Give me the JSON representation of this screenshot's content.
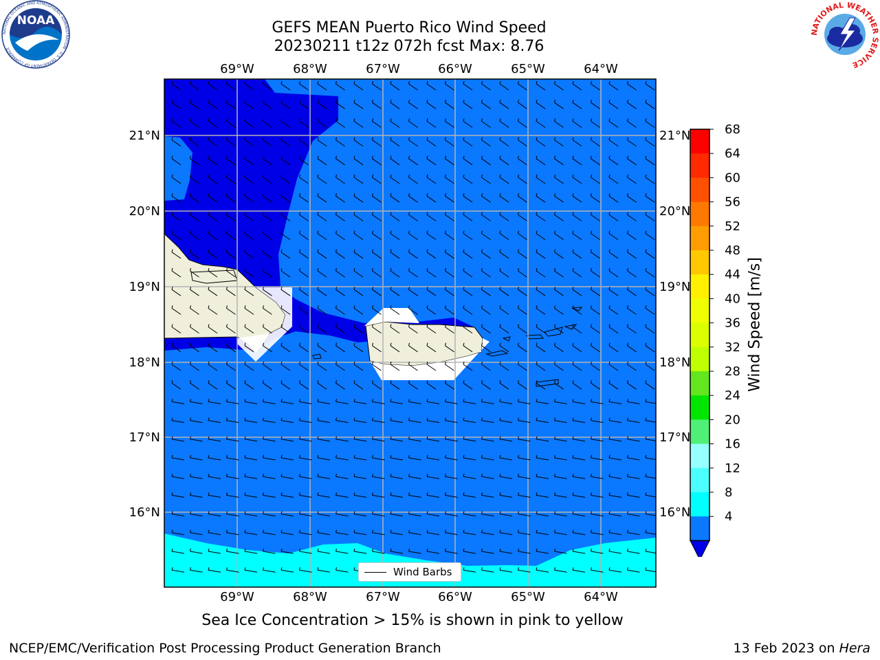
{
  "header": {
    "title_line1": "GEFS MEAN Puerto Rico Wind Speed",
    "title_line2": "20230211 t12z 072h fcst   Max: 8.76"
  },
  "logos": {
    "left_name": "NOAA",
    "left_ring_text": "NATIONAL OCEANIC AND ATMOSPHERIC ADMINISTRATION · U.S. DEPARTMENT OF COMMERCE",
    "right_ring_text": "NATIONAL WEATHER SERVICE"
  },
  "map": {
    "lon_labels": [
      "69°W",
      "68°W",
      "67°W",
      "66°W",
      "65°W",
      "64°W"
    ],
    "lat_labels": [
      "21°N",
      "20°N",
      "19°N",
      "18°N",
      "17°N",
      "16°N"
    ],
    "legend_label": "Wind Barbs",
    "colors": {
      "dark_blue": "#0000e6",
      "mid_blue": "#0a78ff",
      "cyan": "#00ffff",
      "land": "#efefdc",
      "grid": "#b4b4b4"
    }
  },
  "colorbar": {
    "label": "Wind Speed [m/s]",
    "ticks": [
      "68",
      "64",
      "60",
      "56",
      "52",
      "48",
      "44",
      "40",
      "36",
      "32",
      "28",
      "24",
      "20",
      "16",
      "12",
      "8",
      "4"
    ],
    "colors": [
      "#ff0000",
      "#ff2a00",
      "#ff5000",
      "#ff7800",
      "#ff9c00",
      "#ffc800",
      "#fff000",
      "#f0ff00",
      "#dcff00",
      "#c0ff00",
      "#64e61e",
      "#00e600",
      "#50f078",
      "#96ffff",
      "#4bffff",
      "#00ffff",
      "#0a78ff",
      "#0000e6"
    ]
  },
  "caption": "Sea Ice Concentration > 15% is shown in pink to yellow",
  "footer": {
    "left": "NCEP/EMC/Verification Post Processing Product Generation Branch",
    "date": "13 Feb 2023 on",
    "machine": "Hera"
  }
}
